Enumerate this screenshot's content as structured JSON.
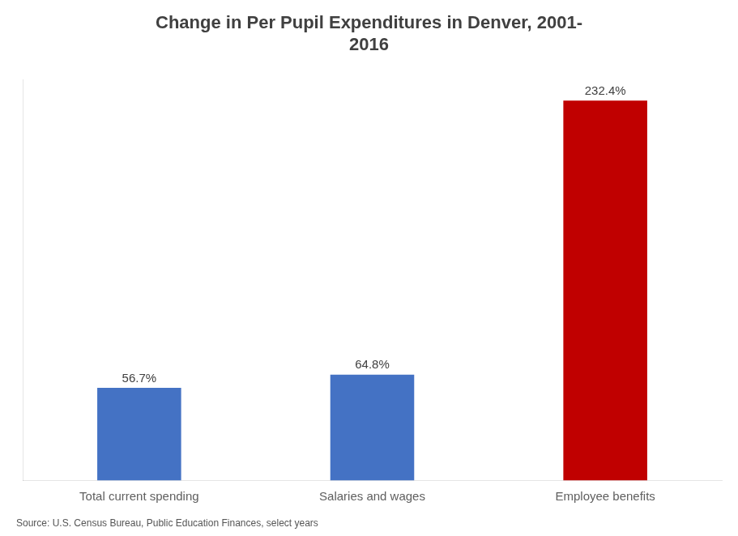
{
  "chart_data": {
    "type": "bar",
    "title": "Change in Per Pupil Expenditures in Denver, 2001-\n2016",
    "categories": [
      "Total current spending",
      "Salaries and wages",
      "Employee benefits"
    ],
    "values": [
      56.7,
      64.8,
      232.4
    ],
    "value_labels": [
      "56.7%",
      "64.8%",
      "232.4%"
    ],
    "colors": [
      "#4472C4",
      "#4472C4",
      "#C00000"
    ],
    "ylim": [
      0,
      245
    ],
    "tick_labels": "x",
    "grid": false,
    "data_labels": true,
    "annotations": [
      "Source: U.S. Census Bureau, Public Education Finances, select years"
    ]
  }
}
